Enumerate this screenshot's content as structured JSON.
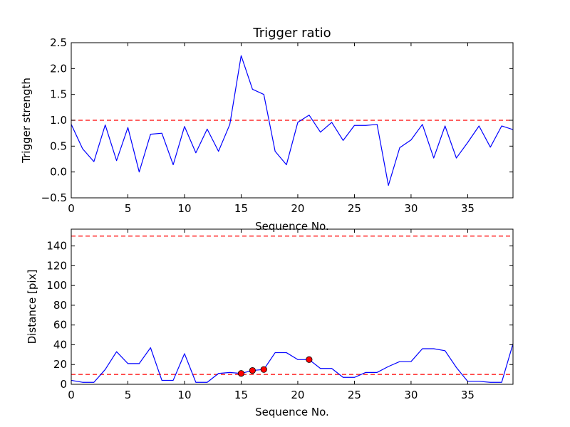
{
  "chart_data": [
    {
      "type": "line",
      "title": "Trigger ratio",
      "xlabel": "Sequence No.",
      "ylabel": "Trigger strength",
      "xlim": [
        0,
        39
      ],
      "ylim": [
        -0.5,
        2.5
      ],
      "xticks": [
        0,
        5,
        10,
        15,
        20,
        25,
        30,
        35
      ],
      "yticks": [
        -0.5,
        0.0,
        0.5,
        1.0,
        1.5,
        2.0,
        2.5
      ],
      "ytick_labels": [
        "−0.5",
        "0.0",
        "0.5",
        "1.0",
        "1.5",
        "2.0",
        "2.5"
      ],
      "line_color": "#0000ff",
      "threshold_color": "#ff0000",
      "series": [
        {
          "name": "trigger strength",
          "x": [
            0,
            1,
            2,
            3,
            4,
            5,
            6,
            7,
            8,
            9,
            10,
            11,
            12,
            13,
            14,
            15,
            16,
            17,
            18,
            19,
            20,
            21,
            22,
            23,
            24,
            25,
            26,
            27,
            28,
            29,
            30,
            31,
            32,
            33,
            34,
            35,
            36,
            37,
            38,
            39
          ],
          "values": [
            0.92,
            0.45,
            0.2,
            0.91,
            0.22,
            0.86,
            0.0,
            0.73,
            0.75,
            0.14,
            0.88,
            0.37,
            0.83,
            0.4,
            0.92,
            2.25,
            1.6,
            1.5,
            0.4,
            0.14,
            0.96,
            1.1,
            0.77,
            0.96,
            0.61,
            0.9,
            0.9,
            0.92,
            -0.26,
            0.47,
            0.62,
            0.92,
            0.27,
            0.89,
            0.27,
            0.57,
            0.89,
            0.48,
            0.89,
            0.82
          ]
        }
      ],
      "hlines": [
        1.0
      ]
    },
    {
      "type": "line",
      "title": "",
      "xlabel": "Sequence No.",
      "ylabel": "Distance [pix]",
      "xlim": [
        0,
        39
      ],
      "ylim": [
        0,
        157
      ],
      "xticks": [
        0,
        5,
        10,
        15,
        20,
        25,
        30,
        35
      ],
      "yticks": [
        0,
        20,
        40,
        60,
        80,
        100,
        120,
        140
      ],
      "ytick_labels": [
        "0",
        "20",
        "40",
        "60",
        "80",
        "100",
        "120",
        "140"
      ],
      "line_color": "#0000ff",
      "threshold_color": "#ff0000",
      "marker_color": "#ff0000",
      "series": [
        {
          "name": "distance",
          "x": [
            0,
            1,
            2,
            3,
            4,
            5,
            6,
            7,
            8,
            9,
            10,
            11,
            12,
            13,
            14,
            15,
            16,
            17,
            18,
            19,
            20,
            21,
            22,
            23,
            24,
            25,
            26,
            27,
            28,
            29,
            30,
            31,
            32,
            33,
            34,
            35,
            36,
            37,
            38,
            39
          ],
          "values": [
            4,
            2,
            2,
            15,
            33,
            21,
            21,
            37,
            4,
            4,
            31,
            2,
            2,
            11,
            12,
            11,
            14,
            15,
            32,
            32,
            25,
            25,
            16,
            16,
            7,
            7,
            12,
            12,
            18,
            23,
            23,
            36,
            36,
            34,
            17,
            3,
            3,
            2,
            2,
            41
          ]
        }
      ],
      "markers": {
        "x": [
          15,
          16,
          17,
          21
        ],
        "values": [
          11,
          14,
          15,
          25
        ]
      },
      "hlines": [
        10,
        150
      ]
    }
  ]
}
